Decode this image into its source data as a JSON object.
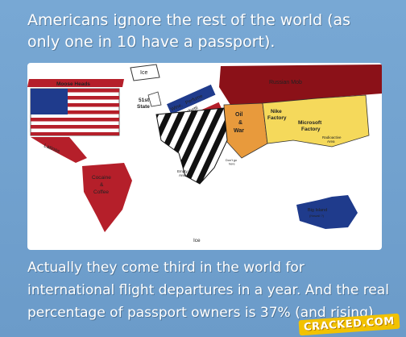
{
  "headline": "Americans ignore the rest of the world (as only one in 10 have a passport).",
  "footer": "Actually they come third in the world for international flight departures in a year. And the real percentage of passport owners is 37% (and rising).",
  "map_labels": {
    "ice_top": "Ice",
    "moose_heads": "Moose Heads",
    "russian_mob": "Russian Mob",
    "state_51": "51st\nState",
    "wine": "Wine,",
    "perfume": "Perfume",
    "spaghetti": "Spaghetti",
    "oil_war": "Oil\n&\nWar",
    "nike_factory": "Nike\nFactory",
    "microsoft_factory": "Microsoft\nFactory",
    "radioactive": "Radioactive\nArea",
    "latinos": "Latinos",
    "dont_go": "Don't go\nhere",
    "empty_area": "Empty\nArea",
    "cocaine": "Cocaine\n&\nCoffee",
    "big_island": "Big Island\n(Hawaii ?)",
    "ice_bottom": "Ice"
  },
  "logo": "CRACKED.COM",
  "colors": {
    "background": "#6fa0cf",
    "russia": "#8b1118",
    "china": "#f5d95b",
    "africa_stripes": "#111111",
    "middle_east": "#e89a3c",
    "south_america": "#b51f2a",
    "australia": "#1f3b8c",
    "latinos_band": "#b51f2a"
  }
}
